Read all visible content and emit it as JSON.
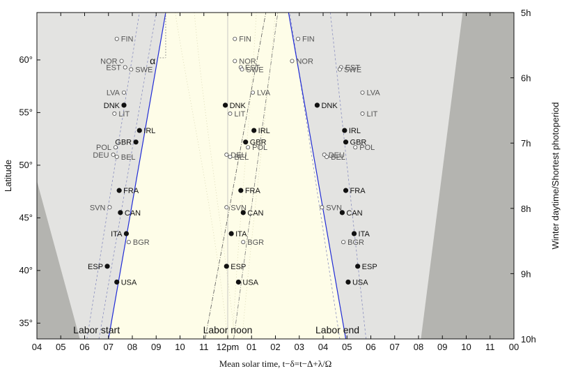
{
  "chart_data": {
    "type": "scatter",
    "xlabel": "Mean solar time, t−δ=t−Δ+λ/Ω",
    "ylabel_left": "Latitude",
    "ylabel_right": "Winter daytime/Shortest photoperiod",
    "x_ticks": [
      "04",
      "05",
      "06",
      "07",
      "08",
      "09",
      "10",
      "11",
      "12pm",
      "01",
      "02",
      "03",
      "04",
      "05",
      "06",
      "07",
      "08",
      "09",
      "10",
      "11",
      "00"
    ],
    "x_range_hours": [
      4,
      24
    ],
    "y_ticks": [
      "35°",
      "40°",
      "45°",
      "50°",
      "55°",
      "60°"
    ],
    "y_range_deg": [
      33.5,
      64.5
    ],
    "right_ticks": [
      "5h",
      "6h",
      "7h",
      "8h",
      "9h",
      "10h"
    ],
    "phase_labels": [
      "Labor start",
      "Labor noon",
      "Labor end"
    ],
    "alpha_label": "α",
    "colors": {
      "background": "#e3e3e1",
      "workday_band": "#fefde8",
      "night_wedge": "#b4b4b0",
      "boundary_line": "#1f2ad6",
      "marker_filled": "#111111",
      "marker_open": "#ffffff"
    },
    "countries": [
      {
        "code": "FIN",
        "lat": 62.0,
        "start": 7.35,
        "noon": 12.3,
        "end": 14.95,
        "filled": false
      },
      {
        "code": "NOR",
        "lat": 59.9,
        "start": 7.55,
        "noon": 12.3,
        "end": 14.7,
        "filled": false
      },
      {
        "code": "EST",
        "lat": 59.3,
        "start": 7.7,
        "noon": 12.55,
        "end": 16.75,
        "filled": false
      },
      {
        "code": "SWE",
        "lat": 59.1,
        "start": 7.95,
        "noon": 12.6,
        "end": 16.7,
        "filled": false
      },
      {
        "code": "LVA",
        "lat": 56.9,
        "start": 7.65,
        "noon": 13.05,
        "end": 17.65,
        "filled": false
      },
      {
        "code": "DNK",
        "lat": 55.7,
        "start": 7.65,
        "noon": 11.9,
        "end": 15.75,
        "filled": true
      },
      {
        "code": "LIT",
        "lat": 54.9,
        "start": 7.25,
        "noon": 12.1,
        "end": 17.65,
        "filled": false
      },
      {
        "code": "IRL",
        "lat": 53.3,
        "start": 8.3,
        "noon": 13.1,
        "end": 16.9,
        "filled": true
      },
      {
        "code": "GBR",
        "lat": 52.2,
        "start": 8.15,
        "noon": 12.75,
        "end": 16.95,
        "filled": true
      },
      {
        "code": "POL",
        "lat": 51.7,
        "start": 7.3,
        "noon": 12.85,
        "end": 17.35,
        "filled": false
      },
      {
        "code": "DEU",
        "lat": 51.0,
        "start": 7.2,
        "noon": 11.95,
        "end": 16.05,
        "filled": false
      },
      {
        "code": "BEL",
        "lat": 50.8,
        "start": 7.35,
        "noon": 12.1,
        "end": 16.15,
        "filled": false
      },
      {
        "code": "FRA",
        "lat": 47.6,
        "start": 7.45,
        "noon": 12.55,
        "end": 16.95,
        "filled": true
      },
      {
        "code": "SVN",
        "lat": 46.0,
        "start": 7.05,
        "noon": 11.95,
        "end": 15.95,
        "filled": false
      },
      {
        "code": "CAN",
        "lat": 45.5,
        "start": 7.5,
        "noon": 12.65,
        "end": 16.8,
        "filled": true
      },
      {
        "code": "ITA",
        "lat": 43.5,
        "start": 7.75,
        "noon": 12.15,
        "end": 17.3,
        "filled": true
      },
      {
        "code": "BGR",
        "lat": 42.7,
        "start": 7.85,
        "noon": 12.65,
        "end": 16.85,
        "filled": false
      },
      {
        "code": "ESP",
        "lat": 40.4,
        "start": 6.95,
        "noon": 11.95,
        "end": 17.45,
        "filled": true
      },
      {
        "code": "USA",
        "lat": 38.9,
        "start": 7.35,
        "noon": 12.45,
        "end": 17.05,
        "filled": true
      }
    ]
  }
}
